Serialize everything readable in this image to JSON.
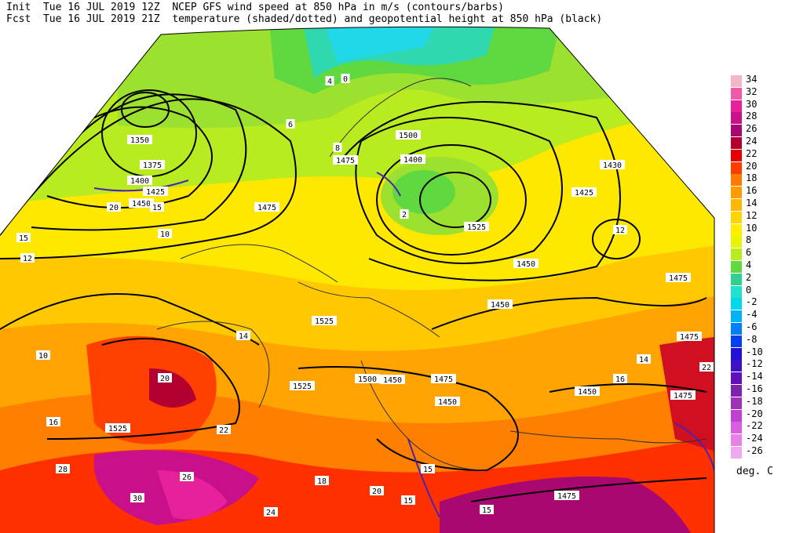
{
  "header": {
    "init_label": "Init",
    "init_time": "Tue 16 JUL 2019 12Z",
    "fcst_label": "Fcst",
    "fcst_time": "Tue 16 JUL 2019 21Z",
    "title_line1": "NCEP GFS wind speed at 850 hPa in m/s (contours/barbs)",
    "title_line2": "temperature (shaded/dotted) and geopotential height at 850 hPa (black)"
  },
  "colorbar": {
    "unit": "deg. C",
    "levels": [
      {
        "v": "34",
        "c": "#f4b6c2"
      },
      {
        "v": "32",
        "c": "#f25aa8"
      },
      {
        "v": "30",
        "c": "#e8209a"
      },
      {
        "v": "28",
        "c": "#c8108a"
      },
      {
        "v": "26",
        "c": "#a80870"
      },
      {
        "v": "24",
        "c": "#b40030"
      },
      {
        "v": "22",
        "c": "#e80000"
      },
      {
        "v": "20",
        "c": "#ff3c00"
      },
      {
        "v": "18",
        "c": "#ff7a00"
      },
      {
        "v": "16",
        "c": "#ff9a00"
      },
      {
        "v": "14",
        "c": "#ffb800"
      },
      {
        "v": "12",
        "c": "#ffd400"
      },
      {
        "v": "10",
        "c": "#ffee00"
      },
      {
        "v": "8",
        "c": "#e8f400"
      },
      {
        "v": "6",
        "c": "#b8ec20"
      },
      {
        "v": "4",
        "c": "#60d840"
      },
      {
        "v": "2",
        "c": "#30d090"
      },
      {
        "v": "0",
        "c": "#20e0d0"
      },
      {
        "v": "-2",
        "c": "#00d8f0"
      },
      {
        "v": "-4",
        "c": "#00b0f8"
      },
      {
        "v": "-6",
        "c": "#0080f8"
      },
      {
        "v": "-8",
        "c": "#0040f0"
      },
      {
        "v": "-10",
        "c": "#2010d8"
      },
      {
        "v": "-12",
        "c": "#4010c8"
      },
      {
        "v": "-14",
        "c": "#6010b8"
      },
      {
        "v": "-16",
        "c": "#8020b0"
      },
      {
        "v": "-18",
        "c": "#a030b8"
      },
      {
        "v": "-20",
        "c": "#c040d0"
      },
      {
        "v": "-22",
        "c": "#d860e0"
      },
      {
        "v": "-24",
        "c": "#e880e8"
      },
      {
        "v": "-26",
        "c": "#f0a8f0"
      }
    ]
  },
  "height_labels": [
    "1350",
    "1375",
    "1400",
    "1425",
    "1450",
    "1475",
    "1500",
    "1525",
    "1425",
    "1430",
    "1400",
    "1450",
    "1475",
    "1450",
    "1475",
    "1500",
    "1475",
    "1450",
    "1525",
    "1525",
    "1525",
    "1475",
    "1450",
    "1475",
    "1450",
    "1475"
  ],
  "wind_labels": [
    "15",
    "20",
    "15",
    "10",
    "15",
    "15",
    "15"
  ],
  "temp_labels": [
    "12",
    "10",
    "14",
    "16",
    "20",
    "22",
    "26",
    "28",
    "30",
    "24",
    "6",
    "8",
    "4",
    "0",
    "2",
    "12",
    "14",
    "16",
    "18",
    "20",
    "22"
  ]
}
